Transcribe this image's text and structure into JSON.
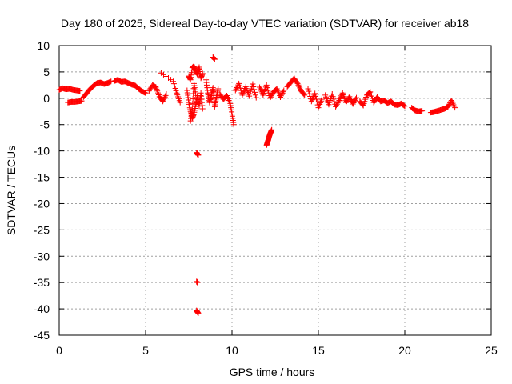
{
  "chart_data": {
    "type": "scatter",
    "title": "Day 180 of 2025, Sidereal Day-to-day VTEC variation (SDTVAR) for receiver ab18",
    "xlabel": "GPS time / hours",
    "ylabel": "SDTVAR / TECUs",
    "xlim": [
      0,
      25
    ],
    "ylim": [
      -45,
      10
    ],
    "grid": true,
    "marker": "+",
    "color": "#ff0000",
    "xticks": [
      "0",
      "5",
      "10",
      "15",
      "20",
      "25"
    ],
    "yticks": [
      "10",
      "5",
      "0",
      "-5",
      "-10",
      "-15",
      "-20",
      "-25",
      "-30",
      "-35",
      "-40",
      "-45"
    ],
    "series": [
      {
        "name": "SDTVAR",
        "segments": [
          {
            "x": [
              0.0,
              0.2,
              0.4,
              0.6,
              0.8,
              1.0,
              1.2
            ],
            "y": [
              1.6,
              1.9,
              1.7,
              1.8,
              1.6,
              1.5,
              1.4
            ]
          },
          {
            "x": [
              0.5,
              0.7,
              0.9,
              1.1,
              1.3
            ],
            "y": [
              -0.8,
              -0.7,
              -0.7,
              -0.6,
              -0.5
            ]
          },
          {
            "x": [
              1.4,
              1.6,
              1.8,
              2.0,
              2.2,
              2.4,
              2.6,
              2.8,
              3.0
            ],
            "y": [
              0.2,
              1.0,
              1.8,
              2.4,
              2.9,
              3.0,
              2.7,
              2.9,
              3.2
            ]
          },
          {
            "x": [
              3.2,
              3.4,
              3.6,
              3.8,
              4.0,
              4.2,
              4.4,
              4.6,
              4.8,
              5.0
            ],
            "y": [
              3.3,
              3.5,
              3.1,
              3.2,
              2.9,
              2.6,
              2.4,
              1.8,
              1.3,
              1.0
            ]
          },
          {
            "x": [
              5.2,
              5.4,
              5.6,
              5.8,
              6.0,
              6.2
            ],
            "y": [
              1.4,
              2.5,
              2.1,
              0.3,
              -0.6,
              0.8
            ]
          },
          {
            "x": [
              5.9,
              6.6,
              6.8,
              7.0
            ],
            "y": [
              4.8,
              3.2,
              1.0,
              -0.8
            ]
          },
          {
            "x": [
              7.5,
              7.6,
              7.7,
              7.8,
              7.9,
              8.0,
              8.1,
              8.2,
              8.3
            ],
            "y": [
              4.2,
              3.5,
              5.8,
              6.1,
              5.2,
              4.5,
              5.9,
              3.8,
              4.7
            ]
          },
          {
            "x": [
              7.4,
              7.5,
              7.6,
              7.7,
              7.8,
              7.9,
              8.0,
              8.1,
              8.2,
              8.3
            ],
            "y": [
              1.5,
              -0.8,
              -2.5,
              -3.8,
              -3.0,
              -1.2,
              0.5,
              -1.5,
              1.0,
              -2.0
            ]
          },
          {
            "x": [
              7.6,
              7.7,
              7.8,
              7.9
            ],
            "y": [
              -4.3,
              -2.0,
              2.8,
              0.8
            ]
          },
          {
            "x": [
              8.5,
              8.6,
              8.7,
              8.8,
              8.9,
              9.0,
              9.1,
              9.2
            ],
            "y": [
              3.5,
              1.0,
              -0.8,
              0.5,
              2.0,
              -1.6,
              0.2,
              1.8
            ]
          },
          {
            "x": [
              8.9,
              9.0
            ],
            "y": [
              7.8,
              7.4
            ]
          },
          {
            "x": [
              9.3,
              9.5,
              9.7,
              9.9,
              10.0,
              10.1
            ],
            "y": [
              0.8,
              -0.2,
              0.5,
              -1.0,
              -3.0,
              -5.0
            ]
          },
          {
            "x": [
              10.2,
              10.4,
              10.6,
              10.8,
              11.0,
              11.2,
              11.4
            ],
            "y": [
              1.5,
              2.8,
              0.6,
              2.2,
              0.4,
              2.7,
              0.1
            ]
          },
          {
            "x": [
              11.6,
              11.8,
              12.0,
              12.2,
              12.4,
              12.6,
              12.8,
              13.0
            ],
            "y": [
              2.1,
              0.6,
              2.5,
              0.0,
              1.2,
              1.8,
              0.2,
              1.5
            ]
          },
          {
            "x": [
              12.0,
              12.05,
              12.1,
              12.15,
              12.2,
              12.25,
              12.3
            ],
            "y": [
              -8.9,
              -8.4,
              -7.9,
              -7.3,
              -6.8,
              -6.4,
              -6.0
            ]
          },
          {
            "x": [
              13.2,
              13.4,
              13.6,
              13.8,
              14.0,
              14.2
            ],
            "y": [
              2.2,
              3.0,
              3.8,
              2.8,
              1.4,
              0.6
            ]
          },
          {
            "x": [
              14.4,
              14.6,
              14.8,
              15.0,
              15.2
            ],
            "y": [
              1.8,
              -0.6,
              0.9,
              -1.8,
              -0.2
            ]
          },
          {
            "x": [
              15.4,
              15.6,
              15.8,
              16.0,
              16.2,
              16.4,
              16.6,
              16.8,
              17.0,
              17.2
            ],
            "y": [
              0.6,
              -1.2,
              0.8,
              -1.6,
              -0.4,
              1.0,
              -0.8,
              0.3,
              -1.1,
              0.1
            ]
          },
          {
            "x": [
              17.4,
              17.6,
              17.8,
              18.0,
              18.2,
              18.4,
              18.6,
              18.8,
              19.0,
              19.2,
              19.4,
              19.6,
              19.8,
              20.0
            ],
            "y": [
              -0.6,
              -1.4,
              0.6,
              1.2,
              -0.8,
              0.2,
              -0.6,
              -0.4,
              -0.9,
              -0.6,
              -1.2,
              -1.3,
              -1.0,
              -1.5
            ]
          },
          {
            "x": [
              20.4,
              20.6,
              20.8,
              21.0
            ],
            "y": [
              -1.8,
              -2.3,
              -2.5,
              -2.4
            ]
          },
          {
            "x": [
              21.5,
              21.7,
              21.9,
              22.1,
              22.3,
              22.5,
              22.7,
              22.9
            ],
            "y": [
              -2.7,
              -2.6,
              -2.4,
              -2.2,
              -2.0,
              -1.6,
              -0.4,
              -1.8
            ]
          },
          {
            "x": [
              7.95,
              8.0,
              8.05
            ],
            "y": [
              -10.3,
              -10.6,
              -10.8
            ]
          },
          {
            "x": [
              7.95,
              8.0
            ],
            "y": [
              -34.8,
              -35.0
            ]
          },
          {
            "x": [
              7.95,
              8.0,
              8.05
            ],
            "y": [
              -40.3,
              -40.6,
              -40.8
            ]
          }
        ]
      }
    ]
  }
}
